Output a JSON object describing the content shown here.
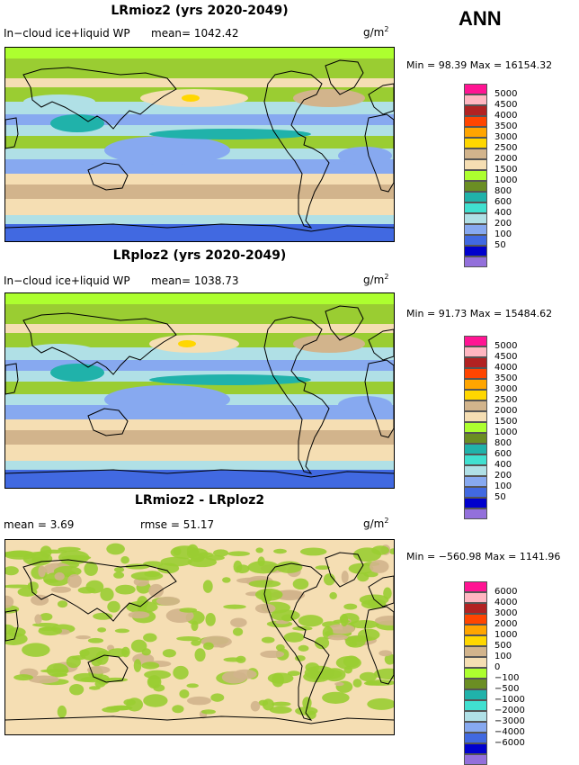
{
  "season": "ANN",
  "panels": [
    {
      "id": "p1",
      "title": "LRmioz2 (yrs 2020-2049)",
      "variable": "In−cloud ice+liquid WP",
      "stat": "mean=  1042.42",
      "units": "g/m",
      "units_exp": "2",
      "minmax": "Min =   98.39  Max = 16154.32",
      "levels": [
        "5000",
        "4500",
        "4000",
        "3500",
        "3000",
        "2500",
        "2000",
        "1500",
        "1000",
        "800",
        "600",
        "400",
        "200",
        "100",
        "50"
      ],
      "colors": [
        "#ff1493",
        "#ffb6c1",
        "#b22222",
        "#ff4500",
        "#ffa500",
        "#ffd700",
        "#d2b48c",
        "#f5deb3",
        "#adff2f",
        "#6b8e23",
        "#20b2aa",
        "#40e0d0",
        "#b0e0e6",
        "#87a9f0",
        "#4169e1",
        "#0000cd",
        "#9370db"
      ]
    },
    {
      "id": "p2",
      "title": "LRploz2 (yrs 2020-2049)",
      "variable": "In−cloud ice+liquid WP",
      "stat": "mean=  1038.73",
      "units": "g/m",
      "units_exp": "2",
      "minmax": "Min =   91.73  Max = 15484.62",
      "levels": [
        "5000",
        "4500",
        "4000",
        "3500",
        "3000",
        "2500",
        "2000",
        "1500",
        "1000",
        "800",
        "600",
        "400",
        "200",
        "100",
        "50"
      ],
      "colors": [
        "#ff1493",
        "#ffb6c1",
        "#b22222",
        "#ff4500",
        "#ffa500",
        "#ffd700",
        "#d2b48c",
        "#f5deb3",
        "#adff2f",
        "#6b8e23",
        "#20b2aa",
        "#40e0d0",
        "#b0e0e6",
        "#87a9f0",
        "#4169e1",
        "#0000cd",
        "#9370db"
      ]
    },
    {
      "id": "p3",
      "title": "LRmioz2 - LRploz2",
      "variable": "mean =    3.69",
      "stat": "rmse =   51.17",
      "units": "g/m",
      "units_exp": "2",
      "minmax": "Min = −560.98  Max = 1141.96",
      "levels": [
        "6000",
        "4000",
        "3000",
        "2000",
        "1000",
        "500",
        "100",
        "0",
        "−100",
        "−500",
        "−1000",
        "−2000",
        "−3000",
        "−4000",
        "−6000"
      ],
      "colors": [
        "#ff1493",
        "#ffb6c1",
        "#b22222",
        "#ff4500",
        "#ffa500",
        "#ffd700",
        "#d2b48c",
        "#f5deb3",
        "#adff2f",
        "#6b8e23",
        "#20b2aa",
        "#40e0d0",
        "#b0e0e6",
        "#87a9f0",
        "#4169e1",
        "#0000cd",
        "#9370db"
      ]
    }
  ]
}
